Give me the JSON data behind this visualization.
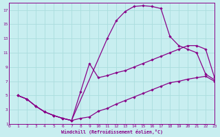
{
  "bg_color": "#c8eef0",
  "line_color": "#880088",
  "grid_color": "#aadddd",
  "xlabel": "Windchill (Refroidissement éolien,°C)",
  "xlim": [
    0,
    23
  ],
  "ylim": [
    1,
    18
  ],
  "xticks": [
    0,
    1,
    2,
    3,
    4,
    5,
    6,
    7,
    8,
    9,
    10,
    11,
    12,
    13,
    14,
    15,
    16,
    17,
    18,
    19,
    20,
    21,
    22,
    23
  ],
  "yticks": [
    1,
    3,
    5,
    7,
    9,
    11,
    13,
    15,
    17
  ],
  "curve1_x": [
    1,
    2,
    3,
    4,
    5,
    6,
    7,
    11,
    12,
    13,
    14,
    15,
    16,
    17,
    18,
    19,
    20,
    21,
    22,
    23
  ],
  "curve1_y": [
    5,
    4.5,
    3.5,
    2.7,
    2.2,
    1.8,
    1.5,
    13.0,
    15.5,
    16.8,
    17.5,
    17.6,
    17.5,
    17.2,
    13.3,
    12.0,
    11.5,
    11.0,
    8.0,
    7.2
  ],
  "curve2_x": [
    1,
    2,
    3,
    4,
    5,
    6,
    7,
    8,
    9,
    10,
    11,
    12,
    13,
    14,
    15,
    16,
    17,
    18,
    19,
    20,
    21,
    22,
    23
  ],
  "curve2_y": [
    5,
    4.5,
    3.5,
    2.7,
    2.2,
    1.8,
    1.5,
    5.5,
    9.5,
    7.5,
    7.8,
    8.2,
    8.5,
    9.0,
    9.5,
    10.0,
    10.5,
    11.0,
    11.5,
    12.0,
    12.0,
    11.5,
    7.5
  ],
  "curve3_x": [
    1,
    2,
    3,
    4,
    5,
    6,
    7,
    8,
    9,
    10,
    11,
    12,
    13,
    14,
    15,
    16,
    17,
    18,
    19,
    20,
    21,
    22,
    23
  ],
  "curve3_y": [
    5,
    4.5,
    3.5,
    2.7,
    2.2,
    1.8,
    1.5,
    1.8,
    2.0,
    2.8,
    3.2,
    3.8,
    4.3,
    4.8,
    5.3,
    5.8,
    6.3,
    6.8,
    7.0,
    7.3,
    7.5,
    7.7,
    7.0
  ]
}
